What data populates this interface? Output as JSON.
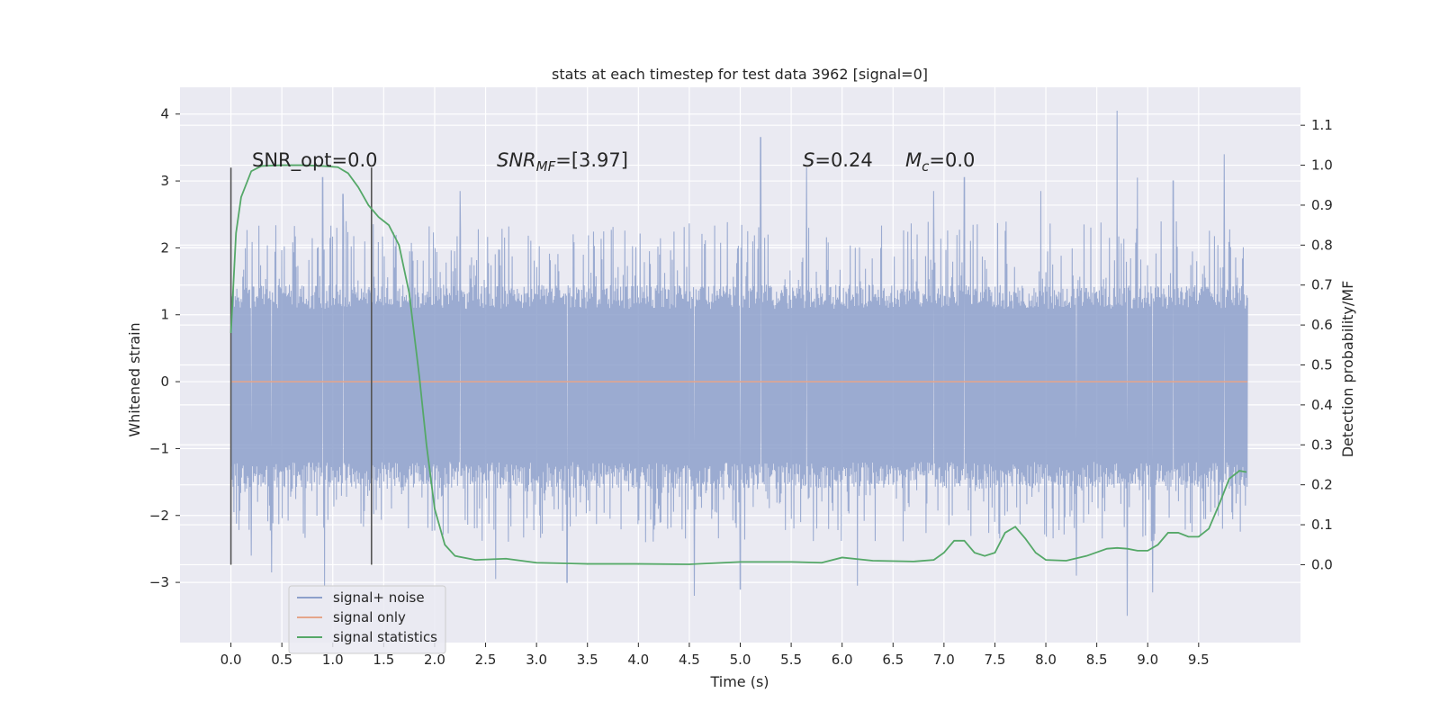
{
  "chart_data": {
    "type": "line",
    "title": "stats at each timestep for test data 3962 [signal=0]",
    "xlabel": "Time (s)",
    "ylabel": "Whitened strain",
    "ylabel_right": "Detection probability/MF",
    "xlim": [
      -0.5,
      10.5
    ],
    "ylim": [
      -3.9,
      4.4
    ],
    "ylim_right": [
      -0.195,
      1.195
    ],
    "grid": true,
    "legend_position": "lower left",
    "x_ticks": [
      "0.0",
      "0.5",
      "1.0",
      "1.5",
      "2.0",
      "2.5",
      "3.0",
      "3.5",
      "4.0",
      "4.5",
      "5.0",
      "5.5",
      "6.0",
      "6.5",
      "7.0",
      "7.5",
      "8.0",
      "8.5",
      "9.0",
      "9.5"
    ],
    "y_ticks": [
      "−3",
      "−2",
      "−1",
      "0",
      "1",
      "2",
      "3",
      "4"
    ],
    "y_right_ticks": [
      "0.0",
      "0.1",
      "0.2",
      "0.3",
      "0.4",
      "0.5",
      "0.6",
      "0.7",
      "0.8",
      "0.9",
      "1.0",
      "1.1"
    ],
    "legend": [
      "signal+ noise",
      "signal only",
      "signal statistics"
    ],
    "annotations": {
      "snr_opt": "SNR_opt=0.0",
      "snr_mf_main": "SNR",
      "snr_mf_sub": "MF",
      "snr_mf_value": "=[3.97]",
      "s_main": "S",
      "s_value": "=0.24",
      "mc_main": "M",
      "mc_sub": "c",
      "mc_value": "=0.0"
    },
    "vertical_lines_x": [
      0.0,
      1.38
    ],
    "series": [
      {
        "name": "signal+ noise",
        "color": "#8da0cb",
        "x_range": [
          0.0,
          9.98
        ],
        "envelope_upper": 1.45,
        "envelope_lower": -1.6,
        "peaks": [
          [
            0.4,
            2.6
          ],
          [
            0.9,
            3.05
          ],
          [
            1.1,
            2.8
          ],
          [
            2.25,
            2.85
          ],
          [
            5.2,
            3.65
          ],
          [
            5.65,
            3.2
          ],
          [
            6.9,
            2.85
          ],
          [
            7.2,
            3.05
          ],
          [
            7.95,
            2.85
          ],
          [
            8.7,
            4.05
          ],
          [
            8.9,
            3.05
          ],
          [
            9.25,
            3.0
          ],
          [
            9.75,
            3.4
          ]
        ],
        "troughs": [
          [
            0.2,
            -2.6
          ],
          [
            0.4,
            -2.85
          ],
          [
            0.92,
            -3.05
          ],
          [
            2.6,
            -2.95
          ],
          [
            3.3,
            -3.0
          ],
          [
            4.55,
            -3.2
          ],
          [
            5.0,
            -3.1
          ],
          [
            6.15,
            -3.05
          ],
          [
            8.8,
            -3.5
          ],
          [
            9.05,
            -3.15
          ],
          [
            8.3,
            -2.9
          ]
        ]
      },
      {
        "name": "signal only",
        "color": "#e5a58a",
        "x": [
          0.0,
          9.98
        ],
        "y": [
          0.0,
          0.0
        ]
      },
      {
        "name": "signal statistics",
        "color": "#55a868",
        "axis": "right",
        "x": [
          0.0,
          0.05,
          0.1,
          0.2,
          0.3,
          0.5,
          0.7,
          0.9,
          1.05,
          1.15,
          1.25,
          1.35,
          1.45,
          1.55,
          1.65,
          1.75,
          1.85,
          1.92,
          2.0,
          2.1,
          2.2,
          2.4,
          2.7,
          3.0,
          3.5,
          4.0,
          4.5,
          5.0,
          5.5,
          5.8,
          6.0,
          6.3,
          6.7,
          6.9,
          7.0,
          7.1,
          7.2,
          7.3,
          7.4,
          7.5,
          7.6,
          7.7,
          7.8,
          7.9,
          8.0,
          8.2,
          8.4,
          8.6,
          8.7,
          8.8,
          8.9,
          9.0,
          9.1,
          9.2,
          9.3,
          9.4,
          9.5,
          9.6,
          9.7,
          9.8,
          9.9,
          9.97
        ],
        "y": [
          0.58,
          0.83,
          0.92,
          0.985,
          0.998,
          1.0,
          1.0,
          0.998,
          0.995,
          0.98,
          0.945,
          0.9,
          0.87,
          0.85,
          0.8,
          0.68,
          0.47,
          0.3,
          0.14,
          0.05,
          0.022,
          0.012,
          0.015,
          0.005,
          0.002,
          0.002,
          0.001,
          0.007,
          0.007,
          0.005,
          0.018,
          0.01,
          0.008,
          0.012,
          0.03,
          0.06,
          0.06,
          0.03,
          0.022,
          0.03,
          0.08,
          0.095,
          0.065,
          0.03,
          0.012,
          0.01,
          0.022,
          0.04,
          0.042,
          0.04,
          0.035,
          0.035,
          0.05,
          0.08,
          0.08,
          0.07,
          0.07,
          0.09,
          0.15,
          0.215,
          0.235,
          0.232
        ]
      }
    ]
  }
}
